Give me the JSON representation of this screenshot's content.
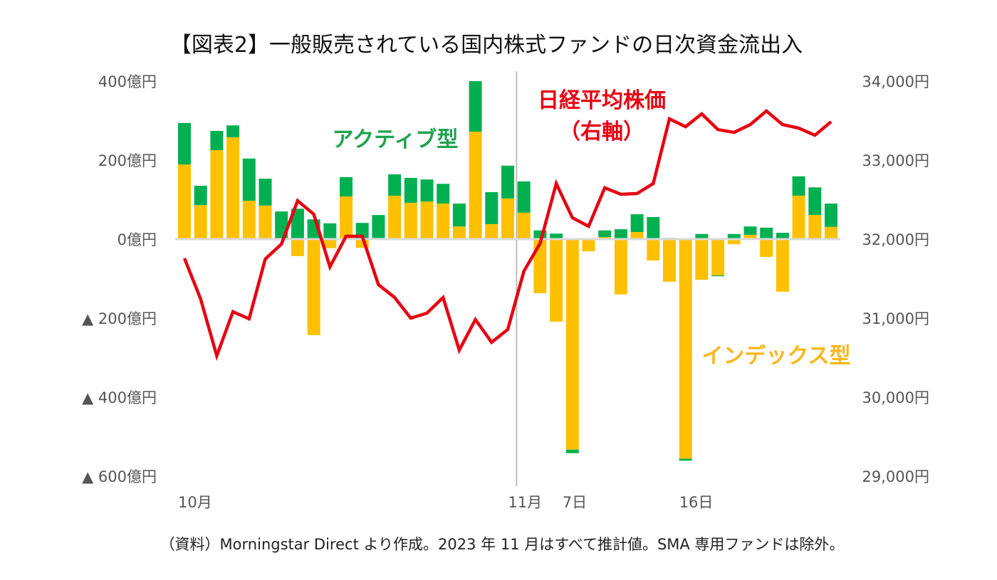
{
  "chart_data": {
    "type": "bar",
    "title": "【図表2】一般販売されている国内株式ファンドの日次資金流出入",
    "left_axis": {
      "unit": "億円",
      "ylim": [
        -600,
        400
      ],
      "ticks": [
        400,
        200,
        0,
        -200,
        -400,
        -600
      ],
      "tick_labels": [
        "400億円",
        "200億円",
        "0億円",
        "▲ 200億円",
        "▲ 400億円",
        "▲ 600億円"
      ]
    },
    "right_axis": {
      "unit": "円",
      "ylim": [
        29000,
        34000
      ],
      "ticks": [
        34000,
        33000,
        32000,
        31000,
        30000,
        29000
      ],
      "tick_labels": [
        "34,000円",
        "33,000円",
        "32,000円",
        "31,000円",
        "30,000円",
        "29,000円"
      ]
    },
    "x_labels": [
      {
        "index": 0,
        "label": "10月"
      },
      {
        "index": 21,
        "label": "11月"
      },
      {
        "index": 24,
        "label": "7日"
      },
      {
        "index": 31,
        "label": "16日"
      }
    ],
    "month_divider_index": 21,
    "series": [
      {
        "name": "インデックス型",
        "kind": "stacked-bar",
        "color": "#ffc000",
        "values": [
          189,
          86,
          225,
          258,
          97,
          85,
          2,
          -43,
          -243,
          -23,
          108,
          -22,
          3,
          110,
          92,
          95,
          90,
          32,
          272,
          38,
          103,
          67,
          -137,
          -209,
          -533,
          -31,
          5,
          -140,
          18,
          -54,
          -108,
          -556,
          -103,
          -92,
          -13,
          11,
          -45,
          -133,
          110,
          61,
          31
        ]
      },
      {
        "name": "アクティブ型",
        "kind": "stacked-bar",
        "color": "#00b050",
        "values": [
          105,
          49,
          49,
          30,
          107,
          68,
          68,
          77,
          50,
          40,
          49,
          41,
          58,
          54,
          63,
          56,
          50,
          58,
          128,
          81,
          83,
          79,
          22,
          14,
          -9,
          1,
          17,
          25,
          45,
          56,
          3,
          -5,
          13,
          -2,
          13,
          21,
          29,
          16,
          49,
          70,
          59
        ]
      },
      {
        "name": "日経平均株価（右軸）",
        "kind": "line",
        "axis": "right",
        "color": "#e60012",
        "values": [
          31757,
          31243,
          30523,
          31081,
          30991,
          31748,
          31937,
          32486,
          32315,
          31649,
          32036,
          32036,
          31423,
          31261,
          31000,
          31063,
          31261,
          30595,
          30982,
          30694,
          30856,
          31595,
          31946,
          32703,
          32270,
          32162,
          32649,
          32568,
          32577,
          32703,
          33523,
          33423,
          33586,
          33387,
          33351,
          33450,
          33622,
          33450,
          33405,
          33315,
          33486
        ]
      }
    ],
    "annotations": {
      "active": "アクティブ型",
      "nikkei_line1": "日経平均株価",
      "nikkei_line2": "（右軸）",
      "index": "インデックス型"
    },
    "footnote": "（資料）Morningstar Direct より作成。2023 年 11 月はすべて推計値。SMA 専用ファンドは除外。"
  }
}
